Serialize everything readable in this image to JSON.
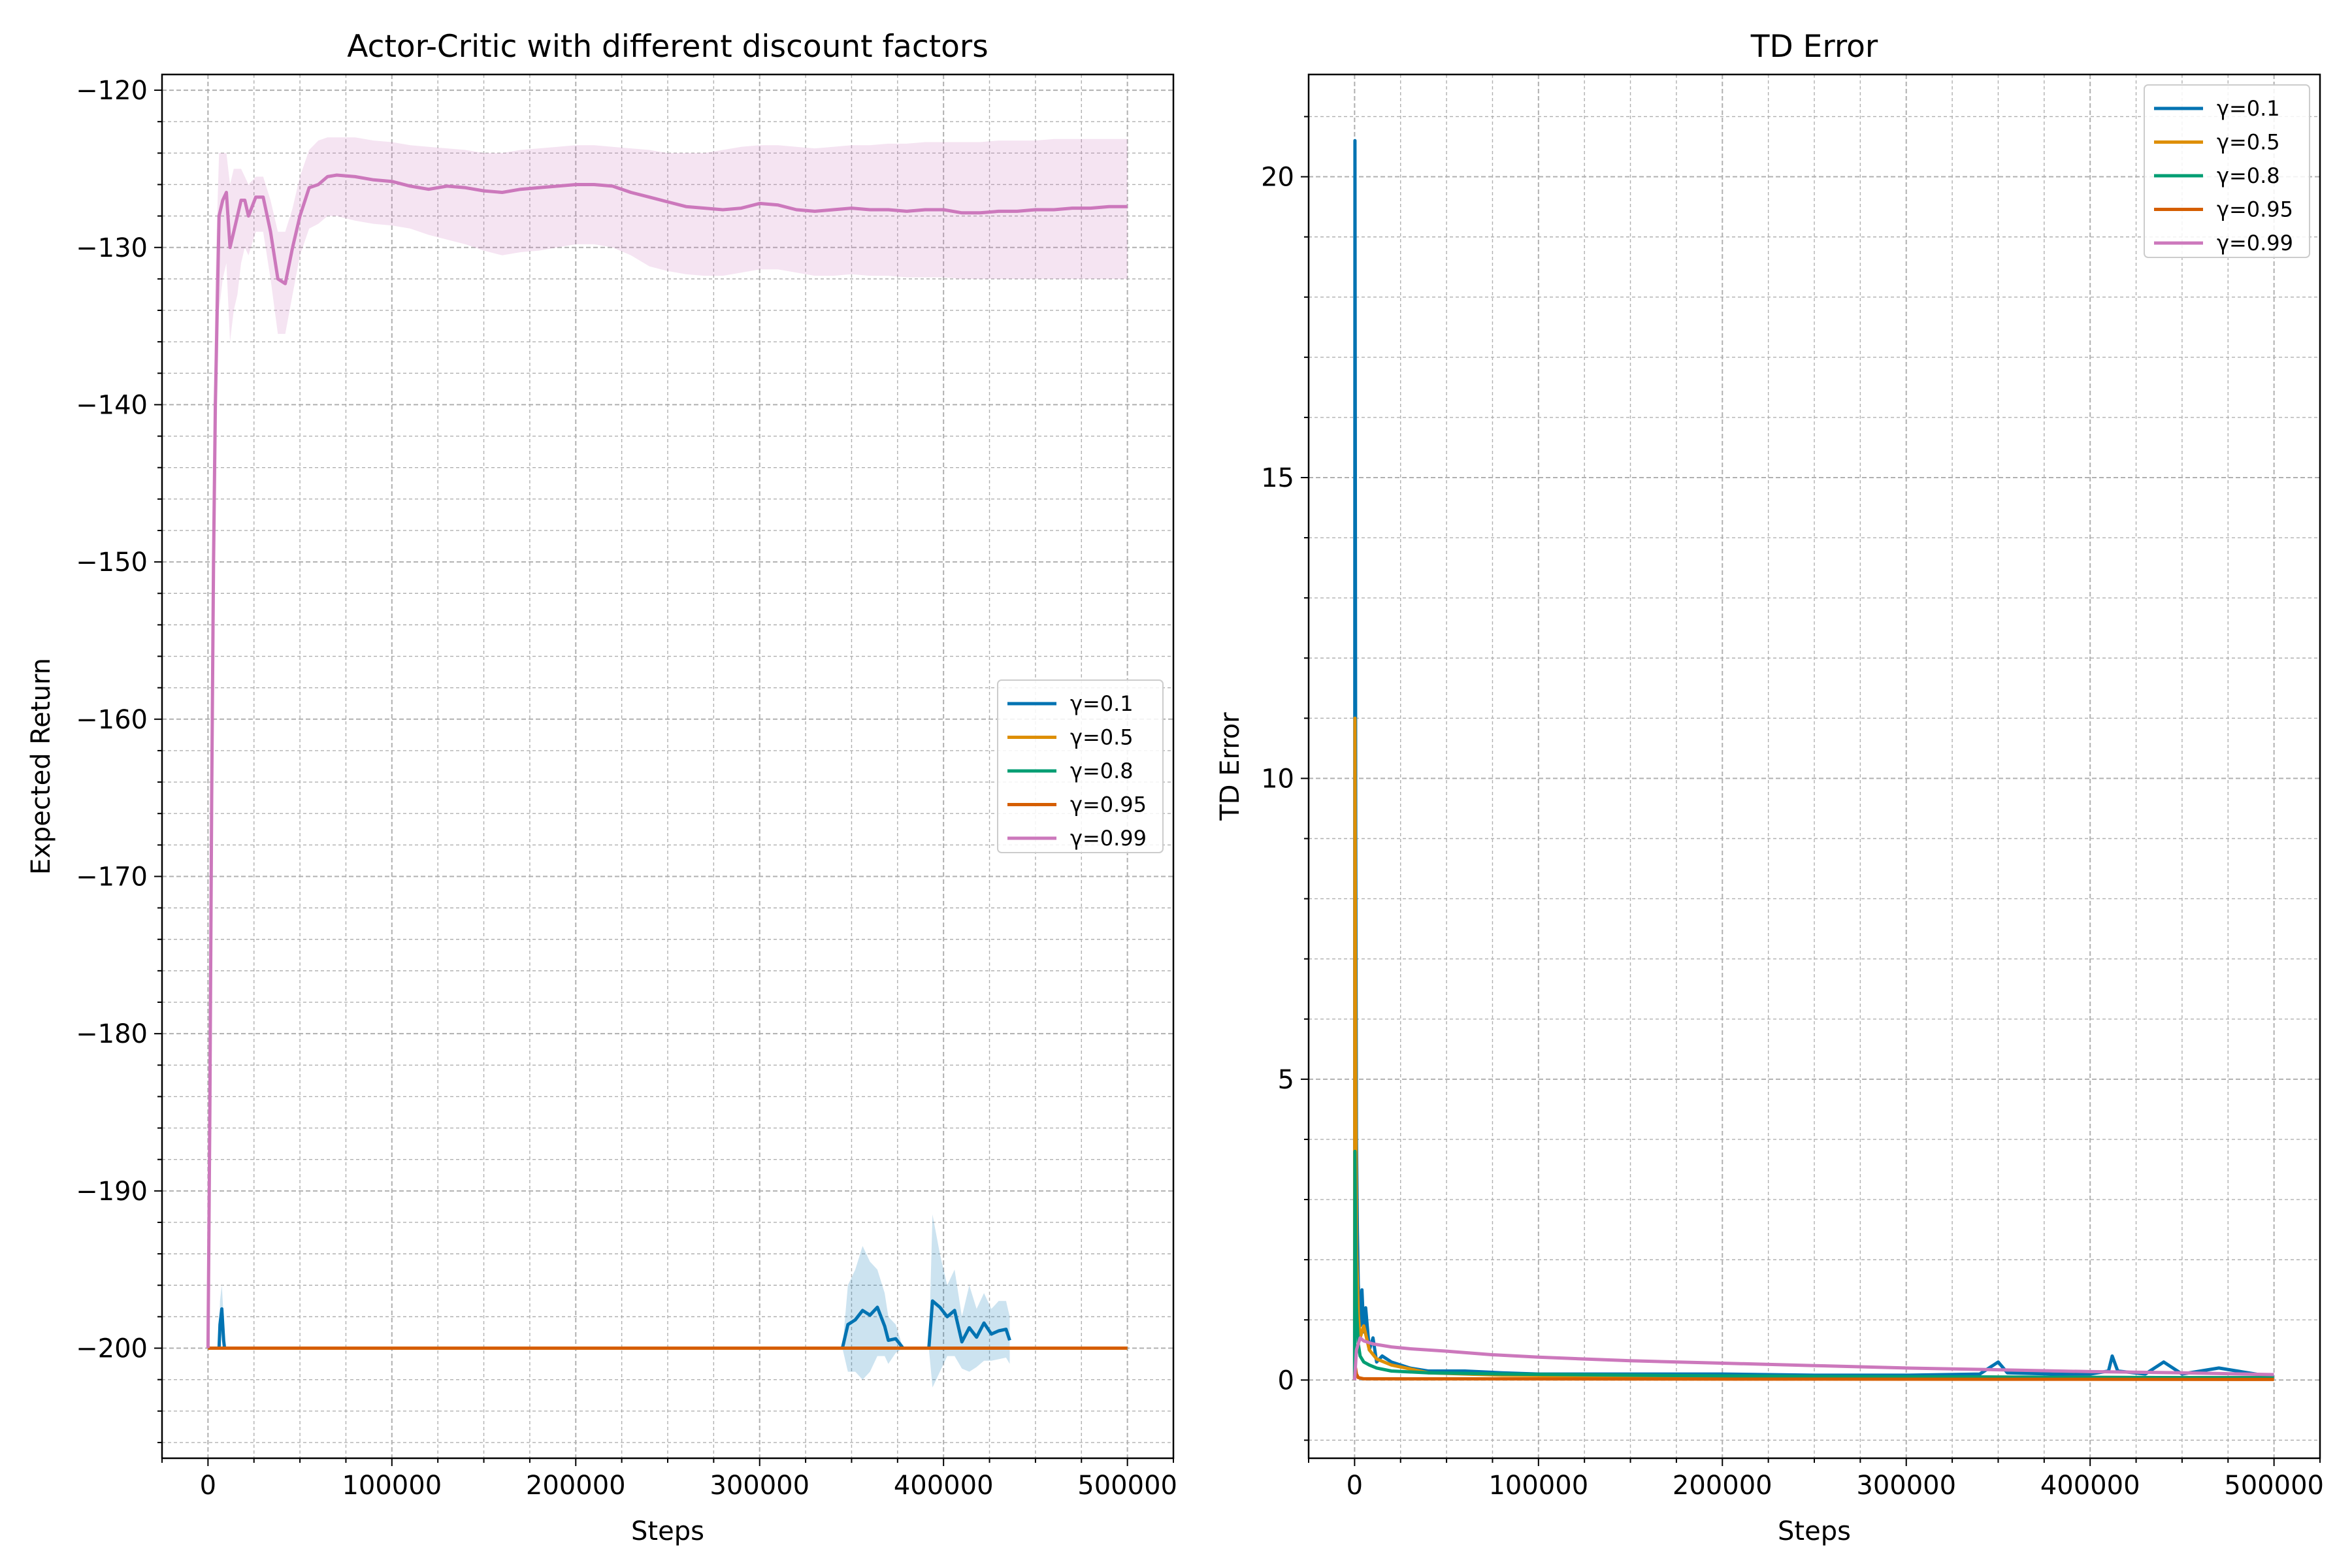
{
  "chart_data": [
    {
      "type": "line",
      "title": "Actor-Critic with different discount factors",
      "xlabel": "Steps",
      "ylabel": "Expected Return",
      "xlim": [
        -25000,
        525000
      ],
      "ylim": [
        -207,
        -119
      ],
      "xticks": [
        0,
        100000,
        200000,
        300000,
        400000,
        500000
      ],
      "yticks": [
        -200,
        -190,
        -180,
        -170,
        -160,
        -150,
        -140,
        -130,
        -120
      ],
      "grid": true,
      "minor_grid": true,
      "legend_position": "center-right",
      "series": [
        {
          "name": "γ=0.1",
          "color": "#0173b2",
          "x": [
            0,
            6000,
            6500,
            7500,
            8500,
            9000,
            345000,
            348000,
            352000,
            356000,
            360000,
            364000,
            368000,
            370000,
            374000,
            378000,
            392000,
            394000,
            398000,
            402000,
            406000,
            410000,
            414000,
            418000,
            422000,
            426000,
            430000,
            434000,
            436000
          ],
          "y": [
            -200,
            -200,
            -198.5,
            -197.5,
            -199.5,
            -200,
            -200,
            -198.5,
            -198.2,
            -197.6,
            -197.9,
            -197.4,
            -198.6,
            -199.5,
            -199.4,
            -200,
            -200,
            -197,
            -197.4,
            -198,
            -197.6,
            -199.6,
            -198.7,
            -199.3,
            -198.4,
            -199.1,
            -198.9,
            -198.8,
            -199.5
          ],
          "band_upper": [
            -200,
            -200,
            -197,
            -196,
            -198,
            -200,
            -200,
            -196,
            -195,
            -193.5,
            -194.5,
            -195,
            -196.5,
            -198,
            -198.5,
            -200,
            -200,
            -191.5,
            -194,
            -196,
            -195,
            -198,
            -196,
            -197.5,
            -196.5,
            -197.5,
            -197,
            -197,
            -198
          ],
          "band_lower": [
            -200,
            -200,
            -200,
            -199,
            -200,
            -200,
            -200,
            -201.5,
            -201.5,
            -202,
            -201.5,
            -200.5,
            -200.5,
            -201,
            -200.3,
            -200,
            -200,
            -202.5,
            -201.5,
            -200.5,
            -200.5,
            -201.3,
            -201.5,
            -201.2,
            -200.8,
            -200.8,
            -200.7,
            -200.6,
            -201
          ]
        },
        {
          "name": "γ=0.5",
          "color": "#de8f05",
          "x": [
            0,
            500000
          ],
          "y": [
            -200,
            -200
          ]
        },
        {
          "name": "γ=0.8",
          "color": "#029e73",
          "x": [
            0,
            500000
          ],
          "y": [
            -200,
            -200
          ]
        },
        {
          "name": "γ=0.95",
          "color": "#d55e00",
          "x": [
            0,
            500000
          ],
          "y": [
            -200,
            -200
          ]
        },
        {
          "name": "γ=0.99",
          "color": "#cc78bc",
          "x": [
            0,
            1000,
            2000,
            3000,
            4000,
            5000,
            6000,
            8000,
            10000,
            12000,
            14000,
            16000,
            18000,
            20000,
            22000,
            26000,
            30000,
            34000,
            38000,
            42000,
            46000,
            50000,
            55000,
            60000,
            65000,
            70000,
            80000,
            90000,
            100000,
            110000,
            120000,
            130000,
            140000,
            150000,
            160000,
            170000,
            180000,
            190000,
            200000,
            210000,
            220000,
            230000,
            240000,
            250000,
            260000,
            270000,
            280000,
            290000,
            300000,
            310000,
            320000,
            330000,
            340000,
            350000,
            360000,
            370000,
            380000,
            390000,
            400000,
            410000,
            420000,
            430000,
            440000,
            450000,
            460000,
            470000,
            480000,
            490000,
            500000
          ],
          "y": [
            -200,
            -185,
            -165,
            -150,
            -140,
            -134,
            -128,
            -127,
            -126.5,
            -130,
            -129,
            -128,
            -127,
            -127,
            -128,
            -126.8,
            -126.8,
            -129,
            -132,
            -132.3,
            -130,
            -128,
            -126.2,
            -126,
            -125.5,
            -125.4,
            -125.5,
            -125.7,
            -125.8,
            -126.1,
            -126.3,
            -126.1,
            -126.2,
            -126.4,
            -126.5,
            -126.3,
            -126.2,
            -126.1,
            -126.0,
            -126.0,
            -126.1,
            -126.5,
            -126.8,
            -127.1,
            -127.4,
            -127.5,
            -127.6,
            -127.5,
            -127.2,
            -127.3,
            -127.6,
            -127.7,
            -127.6,
            -127.5,
            -127.6,
            -127.6,
            -127.7,
            -127.6,
            -127.6,
            -127.8,
            -127.8,
            -127.7,
            -127.7,
            -127.6,
            -127.6,
            -127.5,
            -127.5,
            -127.4,
            -127.4
          ],
          "band_upper": [
            -200,
            -180,
            -160,
            -145,
            -132,
            -128,
            -124,
            -124,
            -124,
            -126,
            -125,
            -125,
            -125,
            -125.5,
            -126,
            -125.5,
            -125.5,
            -127,
            -129,
            -129,
            -127.5,
            -125.5,
            -123.8,
            -123.2,
            -123,
            -123,
            -123,
            -123.2,
            -123.3,
            -123.5,
            -123.6,
            -123.7,
            -123.8,
            -124,
            -124,
            -123.8,
            -123.7,
            -123.6,
            -123.5,
            -123.5,
            -123.6,
            -123.7,
            -123.8,
            -124,
            -124,
            -124,
            -123.8,
            -123.6,
            -123.5,
            -123.5,
            -123.6,
            -123.7,
            -123.6,
            -123.5,
            -123.5,
            -123.4,
            -123.4,
            -123.3,
            -123.3,
            -123.3,
            -123.3,
            -123.2,
            -123.2,
            -123.2,
            -123.1,
            -123.1,
            -123.1,
            -123.1,
            -123.1
          ],
          "band_lower": [
            -200,
            -190,
            -175,
            -160,
            -150,
            -140,
            -134,
            -132,
            -131,
            -136,
            -134,
            -133,
            -131,
            -130,
            -130.5,
            -129,
            -129,
            -132,
            -135.5,
            -135.5,
            -133,
            -130.5,
            -128.8,
            -128.5,
            -128,
            -128,
            -128.3,
            -128.5,
            -128.6,
            -128.8,
            -129.2,
            -129.5,
            -129.8,
            -130.2,
            -130.5,
            -130.3,
            -130.2,
            -130,
            -129.8,
            -129.8,
            -130,
            -130.5,
            -131.2,
            -131.5,
            -131.7,
            -131.8,
            -131.8,
            -131.6,
            -131.4,
            -131.4,
            -131.6,
            -131.8,
            -131.8,
            -131.7,
            -131.8,
            -131.8,
            -131.9,
            -131.9,
            -131.9,
            -132,
            -132,
            -132,
            -132,
            -132,
            -132,
            -132,
            -132,
            -132,
            -132
          ]
        }
      ]
    },
    {
      "type": "line",
      "title": "TD Error",
      "xlabel": "Steps",
      "ylabel": "TD Error",
      "xlim": [
        -25000,
        525000
      ],
      "ylim": [
        -1.3,
        21.7
      ],
      "xticks": [
        0,
        100000,
        200000,
        300000,
        400000,
        500000
      ],
      "yticks": [
        0,
        5,
        10,
        15,
        20
      ],
      "grid": true,
      "minor_grid": true,
      "legend_position": "top-right",
      "series": [
        {
          "name": "γ=0.1",
          "color": "#0173b2",
          "x": [
            0,
            200,
            600,
            1000,
            1500,
            2000,
            2500,
            3000,
            4000,
            5000,
            6000,
            8000,
            10000,
            12000,
            15000,
            20000,
            30000,
            40000,
            60000,
            80000,
            100000,
            150000,
            200000,
            250000,
            300000,
            340000,
            350000,
            355000,
            380000,
            400000,
            410000,
            412000,
            415000,
            430000,
            440000,
            450000,
            470000,
            490000,
            500000
          ],
          "y": [
            0,
            20.6,
            9,
            4,
            2.5,
            1.6,
            1.2,
            0.9,
            1.5,
            0.8,
            1.2,
            0.5,
            0.7,
            0.3,
            0.4,
            0.3,
            0.2,
            0.15,
            0.15,
            0.12,
            0.1,
            0.1,
            0.1,
            0.08,
            0.08,
            0.1,
            0.3,
            0.12,
            0.1,
            0.1,
            0.15,
            0.4,
            0.15,
            0.1,
            0.3,
            0.1,
            0.2,
            0.1,
            0.05
          ]
        },
        {
          "name": "γ=0.5",
          "color": "#de8f05",
          "x": [
            0,
            200,
            600,
            1000,
            2000,
            3000,
            5000,
            8000,
            12000,
            20000,
            40000,
            80000,
            150000,
            250000,
            350000,
            450000,
            500000
          ],
          "y": [
            0,
            11,
            5,
            2.2,
            1.1,
            0.7,
            0.9,
            0.5,
            0.35,
            0.25,
            0.12,
            0.08,
            0.06,
            0.05,
            0.05,
            0.04,
            0.04
          ]
        },
        {
          "name": "γ=0.8",
          "color": "#029e73",
          "x": [
            0,
            200,
            600,
            1000,
            2000,
            3000,
            5000,
            8000,
            12000,
            20000,
            40000,
            80000,
            150000,
            250000,
            350000,
            450000,
            500000
          ],
          "y": [
            0,
            3.8,
            2,
            1.2,
            0.6,
            0.4,
            0.3,
            0.25,
            0.2,
            0.15,
            0.12,
            0.1,
            0.08,
            0.06,
            0.05,
            0.04,
            0.04
          ]
        },
        {
          "name": "γ=0.95",
          "color": "#d55e00",
          "x": [
            0,
            500,
            1000,
            2000,
            5000,
            500000
          ],
          "y": [
            0,
            0.2,
            0.1,
            0.04,
            0.02,
            0.01
          ]
        },
        {
          "name": "γ=0.99",
          "color": "#cc78bc",
          "x": [
            0,
            1000,
            3000,
            5000,
            10000,
            20000,
            30000,
            50000,
            75000,
            100000,
            150000,
            200000,
            250000,
            300000,
            350000,
            400000,
            450000,
            500000
          ],
          "y": [
            0,
            0.5,
            0.7,
            0.65,
            0.6,
            0.55,
            0.52,
            0.48,
            0.42,
            0.38,
            0.32,
            0.28,
            0.24,
            0.2,
            0.17,
            0.14,
            0.12,
            0.09
          ]
        }
      ]
    }
  ]
}
